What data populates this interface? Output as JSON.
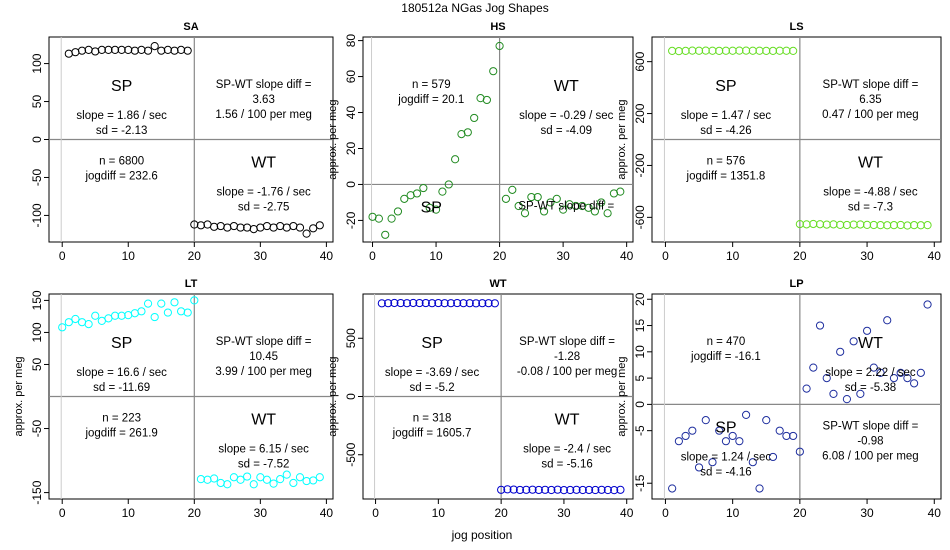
{
  "figure": {
    "title": "180512a   NGas Jog Shapes",
    "xlabel": "jog position"
  },
  "chart_data": [
    {
      "type": "scatter",
      "title": "SA",
      "xlabel": "",
      "ylabel": "",
      "color": "#000000",
      "xlim": [
        -2,
        41
      ],
      "ylim": [
        -135,
        135
      ],
      "xticks": [
        0,
        10,
        20,
        30,
        40
      ],
      "yticks": [
        -100,
        -50,
        0,
        50,
        100
      ],
      "x": [
        1,
        2,
        3,
        4,
        5,
        6,
        7,
        8,
        9,
        10,
        11,
        12,
        13,
        14,
        15,
        16,
        17,
        18,
        19,
        20,
        21,
        22,
        23,
        24,
        25,
        26,
        27,
        28,
        29,
        30,
        31,
        32,
        33,
        34,
        35,
        36,
        37,
        38,
        39
      ],
      "y": [
        113,
        115,
        117,
        118,
        116,
        118,
        118,
        118,
        118,
        118,
        117,
        118,
        117,
        123,
        117,
        118,
        117,
        118,
        117,
        -112,
        -113,
        -112,
        -115,
        -114,
        -116,
        -114,
        -116,
        -116,
        -118,
        -116,
        -114,
        -116,
        -114,
        -116,
        -114,
        -116,
        -124,
        -117,
        -113
      ],
      "quadrant_divider_x": 20,
      "labels": {
        "tl_title": "SP",
        "tl_lines": [
          "slope = 1.86 / sec",
          "sd = -2.13"
        ],
        "tr_lines": [
          "SP-WT slope diff =",
          "3.63",
          "1.56 / 100 per meg"
        ],
        "bl_lines": [
          "n = 6800",
          "jogdiff = 232.6"
        ],
        "br_title": "WT",
        "br_lines": [
          "slope = -1.76 / sec",
          "sd = -2.75"
        ]
      }
    },
    {
      "type": "scatter",
      "title": "HS",
      "xlabel": "",
      "ylabel": "approx. per meg",
      "color": "#228B22",
      "xlim": [
        -1.5,
        41
      ],
      "ylim": [
        -32,
        82
      ],
      "xticks": [
        0,
        10,
        20,
        30,
        40
      ],
      "yticks": [
        -20,
        0,
        20,
        40,
        60,
        80
      ],
      "x": [
        0,
        1,
        2,
        3,
        4,
        5,
        6,
        7,
        8,
        9,
        10,
        11,
        12,
        13,
        14,
        15,
        16,
        17,
        18,
        19,
        20,
        21,
        22,
        23,
        24,
        25,
        26,
        27,
        28,
        29,
        30,
        31,
        32,
        33,
        34,
        35,
        36,
        37,
        38,
        39
      ],
      "y": [
        -18,
        -19,
        -28,
        -19,
        -15,
        -8,
        -6,
        -5,
        -2,
        -13,
        -14,
        -4,
        0,
        14,
        28,
        29,
        37,
        48,
        47,
        63,
        77,
        -8,
        -3,
        -12,
        -16,
        -7,
        -7,
        -15,
        -10,
        -8,
        -14,
        -11,
        -12,
        -12,
        -13,
        -15,
        -10,
        -16,
        -5,
        -4
      ],
      "quadrant_divider_x": 20,
      "labels": {
        "tl_lines": [
          "n = 579",
          "jogdiff = 20.1"
        ],
        "tr_title": "WT",
        "tr_lines": [
          "slope = -0.29 / sec",
          "sd = -4.09"
        ],
        "bl_title": "SP",
        "br_lines": [
          "SP-WT slope diff ="
        ]
      }
    },
    {
      "type": "scatter",
      "title": "LS",
      "xlabel": "",
      "ylabel": "approx. per meg",
      "color": "#66DD22",
      "xlim": [
        -2,
        41
      ],
      "ylim": [
        -790,
        790
      ],
      "xticks": [
        0,
        10,
        20,
        30,
        40
      ],
      "yticks": [
        -600,
        -200,
        200,
        600
      ],
      "x": [
        1,
        2,
        3,
        4,
        5,
        6,
        7,
        8,
        9,
        10,
        11,
        12,
        13,
        14,
        15,
        16,
        17,
        18,
        19,
        20,
        21,
        22,
        23,
        24,
        25,
        26,
        27,
        28,
        29,
        30,
        31,
        32,
        33,
        34,
        35,
        36,
        37,
        38,
        39
      ],
      "y": [
        683,
        681,
        683,
        685,
        684,
        685,
        684,
        683,
        684,
        684,
        685,
        685,
        684,
        684,
        683,
        683,
        684,
        684,
        683,
        -652,
        -654,
        -651,
        -653,
        -656,
        -654,
        -658,
        -659,
        -656,
        -655,
        -658,
        -659,
        -660,
        -661,
        -660,
        -659,
        -663,
        -660,
        -661,
        -660
      ],
      "quadrant_divider_x": 20,
      "labels": {
        "tl_title": "SP",
        "tl_lines": [
          "slope = 1.47 / sec",
          "sd = -4.26"
        ],
        "tr_lines": [
          "SP-WT slope diff =",
          "6.35",
          "0.47 / 100 per meg"
        ],
        "bl_lines": [
          "n = 576",
          "jogdiff = 1351.8"
        ],
        "br_title": "WT",
        "br_lines": [
          "slope = -4.88 / sec",
          "sd = -7.3"
        ]
      }
    },
    {
      "type": "scatter",
      "title": "LT",
      "xlabel": "",
      "ylabel": "approx. per meg",
      "color": "#00FFFF",
      "xlim": [
        -2,
        41
      ],
      "ylim": [
        -160,
        160
      ],
      "xticks": [
        0,
        10,
        20,
        30,
        40
      ],
      "yticks": [
        -150,
        -50,
        50,
        100,
        150
      ],
      "x": [
        0,
        1,
        2,
        3,
        4,
        5,
        6,
        7,
        8,
        9,
        10,
        11,
        12,
        13,
        14,
        15,
        16,
        17,
        18,
        19,
        20,
        21,
        22,
        23,
        24,
        25,
        26,
        27,
        28,
        29,
        30,
        31,
        32,
        33,
        34,
        35,
        36,
        37,
        38,
        39
      ],
      "y": [
        108,
        116,
        121,
        116,
        113,
        126,
        118,
        122,
        126,
        126,
        127,
        130,
        133,
        145,
        124,
        145,
        131,
        147,
        133,
        131,
        150,
        -129,
        -130,
        -128,
        -135,
        -137,
        -126,
        -130,
        -125,
        -137,
        -126,
        -130,
        -136,
        -129,
        -122,
        -135,
        -126,
        -132,
        -131,
        -126
      ],
      "quadrant_divider_x": 20,
      "labels": {
        "tl_title": "SP",
        "tl_lines": [
          "slope = 16.6 / sec",
          "sd = -11.69"
        ],
        "tr_lines": [
          "SP-WT slope diff =",
          "10.45",
          "3.99 / 100 per meg"
        ],
        "bl_lines": [
          "n = 223",
          "jogdiff = 261.9"
        ],
        "br_title": "WT",
        "br_lines": [
          "slope = 6.15 / sec",
          "sd = -7.52"
        ]
      }
    },
    {
      "type": "scatter",
      "title": "WT",
      "xlabel": "",
      "ylabel": "approx. per meg",
      "color": "#0000CD",
      "xlim": [
        -2,
        41
      ],
      "ylim": [
        -880,
        880
      ],
      "xticks": [
        0,
        10,
        20,
        30,
        40
      ],
      "yticks": [
        -500,
        0,
        500
      ],
      "x": [
        1,
        2,
        3,
        4,
        5,
        6,
        7,
        8,
        9,
        10,
        11,
        12,
        13,
        14,
        15,
        16,
        17,
        18,
        19,
        20,
        21,
        22,
        23,
        24,
        25,
        26,
        27,
        28,
        29,
        30,
        31,
        32,
        33,
        34,
        35,
        36,
        37,
        38,
        39
      ],
      "y": [
        800,
        801,
        803,
        802,
        801,
        803,
        802,
        802,
        801,
        802,
        801,
        801,
        802,
        801,
        801,
        800,
        801,
        801,
        800,
        -801,
        -797,
        -799,
        -802,
        -801,
        -800,
        -802,
        -801,
        -803,
        -800,
        -804,
        -803,
        -801,
        -803,
        -802,
        -803,
        -801,
        -803,
        -804,
        -801
      ],
      "quadrant_divider_x": 20,
      "labels": {
        "tl_title": "SP",
        "tl_lines": [
          "slope = -3.69 / sec",
          "sd = -5.2"
        ],
        "tr_lines": [
          "SP-WT slope diff =",
          "-1.28",
          "-0.08 / 100 per meg"
        ],
        "bl_lines": [
          "n = 318",
          "jogdiff = 1605.7"
        ],
        "br_title": "WT",
        "br_lines": [
          "slope = -2.4 / sec",
          "sd = -5.16"
        ]
      }
    },
    {
      "type": "scatter",
      "title": "LP",
      "xlabel": "",
      "ylabel": "approx. per meg",
      "color": "#1F2F9F",
      "xlim": [
        -2,
        41
      ],
      "ylim": [
        -18,
        21
      ],
      "xticks": [
        0,
        10,
        20,
        30,
        40
      ],
      "yticks": [
        -15,
        -5,
        0,
        5,
        10,
        15,
        20
      ],
      "x": [
        1,
        2,
        3,
        4,
        5,
        6,
        7,
        8,
        9,
        10,
        11,
        12,
        13,
        14,
        15,
        16,
        17,
        18,
        19,
        20,
        21,
        22,
        23,
        24,
        25,
        26,
        27,
        28,
        29,
        30,
        31,
        32,
        33,
        34,
        35,
        36,
        37,
        38,
        39
      ],
      "y": [
        -16,
        -7,
        -6,
        -5,
        -12,
        -3,
        -11,
        -5,
        -7,
        -6,
        -7,
        -2,
        -11,
        -16,
        -3,
        -10,
        -5,
        -6,
        -6,
        -9,
        3,
        7,
        15,
        5,
        2,
        10,
        1,
        12,
        2,
        14,
        7,
        6,
        16,
        5,
        6,
        5,
        4,
        6,
        19
      ],
      "quadrant_divider_x": 20,
      "labels": {
        "tl_lines": [
          "n = 470",
          "jogdiff = -16.1"
        ],
        "tr_title": "WT",
        "tr_lines": [
          "slope = 2.22 / sec",
          "sd = -5.38"
        ],
        "bl_title": "SP",
        "bl_lines": [
          "slope = 1.24 / sec",
          "sd = -4.16"
        ],
        "br_lines": [
          "SP-WT slope diff =",
          "-0.98",
          "6.08 / 100 per meg"
        ]
      }
    }
  ]
}
